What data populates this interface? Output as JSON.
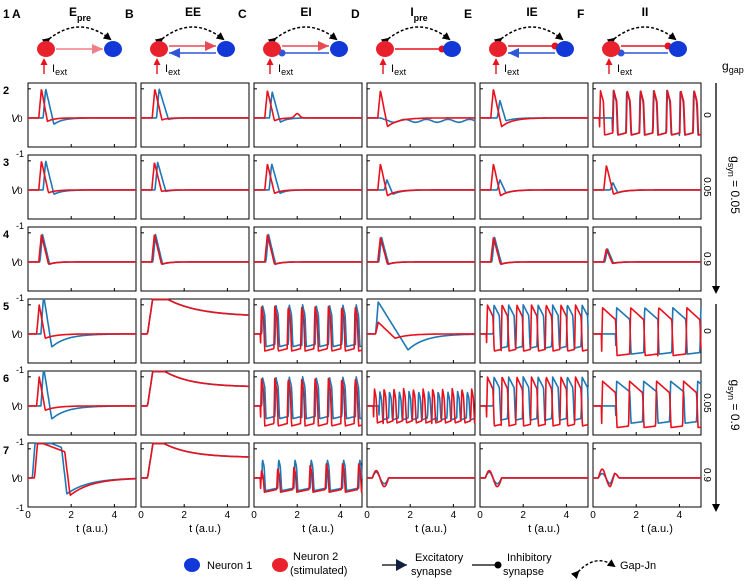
{
  "figure_number": "1",
  "columns": [
    {
      "letter": "A",
      "title": "E",
      "title_sub": "pre",
      "syn": "exc",
      "dir": "pre"
    },
    {
      "letter": "B",
      "title": "EE",
      "title_sub": "",
      "syn": "exc",
      "dir": "both"
    },
    {
      "letter": "C",
      "title": "EI",
      "title_sub": "",
      "syn": "mix1",
      "dir": "both"
    },
    {
      "letter": "D",
      "title": "I",
      "title_sub": "pre",
      "syn": "inh",
      "dir": "pre"
    },
    {
      "letter": "E",
      "title": "IE",
      "title_sub": "",
      "syn": "mix2",
      "dir": "both"
    },
    {
      "letter": "F",
      "title": "II",
      "title_sub": "",
      "syn": "inh",
      "dir": "both"
    }
  ],
  "iext_label": "I",
  "iext_sub": "ext",
  "row_numbers": [
    "2",
    "3",
    "4",
    "5",
    "6",
    "7"
  ],
  "ggap_values": [
    "0",
    "0.05",
    "0.9",
    "0",
    "0.05",
    "0.9"
  ],
  "ggap_label": "g",
  "ggap_sub": "gap",
  "gsyn_labels": [
    {
      "main": "g",
      "sub": "syn",
      "value": " = 0.05"
    },
    {
      "main": "g",
      "sub": "syn",
      "value": " = 0.9"
    }
  ],
  "y_axis_label": "V",
  "y_ticks": [
    "1",
    "0",
    "-1"
  ],
  "x_ticks": [
    "0",
    "2",
    "4"
  ],
  "x_axis_label": "t (a.u.)",
  "legend": {
    "neuron1": "Neuron 1",
    "neuron2_line1": "Neuron 2",
    "neuron2_line2": "(stimulated)",
    "exc_line1": "Excitatory",
    "exc_line2": "synapse",
    "inh_line1": "Inhibitory",
    "inh_line2": "synapse",
    "gap": "Gap-Jn"
  },
  "colors": {
    "neuron1": "#1f77b4",
    "neuron2": "#e8111d",
    "neuron1_dot": "#1238d8",
    "neuron2_dot": "#e8212d"
  },
  "chart_data": {
    "type": "line",
    "grid": false,
    "xlabel": "t (a.u.)",
    "ylabel": "V",
    "xlim": [
      0,
      5
    ],
    "ylim": [
      -1,
      1.2
    ],
    "xticks": [
      0,
      2,
      4
    ],
    "yticks": [
      -1,
      0,
      1
    ],
    "series_names": [
      "Neuron 1",
      "Neuron 2 (stimulated)"
    ],
    "panels": [
      [
        {
          "n1": {
            "k": "s",
            "a": 1.0,
            "d": 0.5,
            "u": 0.22,
            "tau": 0.4,
            "s": 0.7
          },
          "n2": {
            "k": "s",
            "a": 1.0,
            "d": 0.4,
            "u": 0.12,
            "tau": 0.3,
            "s": 0.5
          }
        },
        {
          "n1": {
            "k": "s",
            "a": 1.0,
            "d": 0.55,
            "u": 0.05,
            "tau": 0.3,
            "s": 0.72
          },
          "n2": {
            "k": "s",
            "a": 1.0,
            "d": 0.45,
            "u": 0.07,
            "tau": 0.25,
            "s": 0.52
          }
        },
        {
          "n1": {
            "k": "s",
            "a": 0.9,
            "d": 0.5,
            "u": 0.15,
            "tau": 0.3,
            "s": 0.72
          },
          "n2": {
            "k": "s",
            "a": 0.95,
            "d": 0.45,
            "u": 0.1,
            "tau": 0.25,
            "s": 0.5,
            "bump": 0.15,
            "bt": 2.0
          }
        },
        {
          "n1": {
            "k": "o",
            "base": -0.1,
            "amp": 0.05,
            "period": 1.0,
            "start": 0.5
          },
          "n2": {
            "k": "s",
            "a": 0.95,
            "d": 0.45,
            "u": 0.3,
            "tau": 0.5,
            "s": 0.5
          }
        },
        {
          "n1": {
            "k": "s",
            "a": 0.6,
            "d": 0.4,
            "u": 0.1,
            "tau": 0.4,
            "s": 0.8
          },
          "n2": {
            "k": "s",
            "a": 1.0,
            "d": 0.5,
            "u": 0.3,
            "tau": 0.5,
            "s": 0.5
          }
        },
        {
          "n1": {
            "k": "p",
            "base": -0.6,
            "top": 0.95,
            "period": 0.62,
            "start": 0.9,
            "w": 0.18
          },
          "n2": {
            "k": "p",
            "base": -0.6,
            "top": 0.95,
            "period": 0.62,
            "start": 0.3,
            "w": 0.18
          }
        }
      ],
      [
        {
          "n1": {
            "k": "s",
            "a": 1.0,
            "d": 0.5,
            "u": 0.15,
            "tau": 0.4,
            "s": 0.7
          },
          "n2": {
            "k": "s",
            "a": 1.0,
            "d": 0.45,
            "u": 0.1,
            "tau": 0.35,
            "s": 0.5
          }
        },
        {
          "n1": {
            "k": "s",
            "a": 0.95,
            "d": 0.5,
            "u": 0.05,
            "tau": 0.3,
            "s": 0.65
          },
          "n2": {
            "k": "s",
            "a": 0.95,
            "d": 0.45,
            "u": 0.05,
            "tau": 0.3,
            "s": 0.5
          }
        },
        {
          "n1": {
            "k": "s",
            "a": 0.9,
            "d": 0.5,
            "u": 0.12,
            "tau": 0.3,
            "s": 0.7
          },
          "n2": {
            "k": "s",
            "a": 0.9,
            "d": 0.45,
            "u": 0.12,
            "tau": 0.3,
            "s": 0.5
          }
        },
        {
          "n1": {
            "k": "s",
            "a": 0.35,
            "d": 0.4,
            "u": 0.15,
            "tau": 0.4,
            "s": 0.8
          },
          "n2": {
            "k": "s",
            "a": 0.9,
            "d": 0.45,
            "u": 0.2,
            "tau": 0.4,
            "s": 0.5
          }
        },
        {
          "n1": {
            "k": "s",
            "a": 0.35,
            "d": 0.4,
            "u": 0.1,
            "tau": 0.4,
            "s": 0.8
          },
          "n2": {
            "k": "s",
            "a": 0.9,
            "d": 0.45,
            "u": 0.2,
            "tau": 0.4,
            "s": 0.5
          }
        },
        {
          "n1": {
            "k": "s",
            "a": 0.25,
            "d": 0.35,
            "u": 0.1,
            "tau": 0.4,
            "s": 0.8
          },
          "n2": {
            "k": "s",
            "a": 0.85,
            "d": 0.45,
            "u": 0.15,
            "tau": 0.4,
            "s": 0.5
          }
        }
      ],
      [
        {
          "n1": {
            "k": "s",
            "a": 0.95,
            "d": 0.45,
            "u": 0.08,
            "tau": 0.3,
            "s": 0.55
          },
          "n2": {
            "k": "s",
            "a": 0.95,
            "d": 0.45,
            "u": 0.08,
            "tau": 0.3,
            "s": 0.5
          }
        },
        {
          "n1": {
            "k": "s",
            "a": 0.95,
            "d": 0.45,
            "u": 0.08,
            "tau": 0.3,
            "s": 0.55
          },
          "n2": {
            "k": "s",
            "a": 0.95,
            "d": 0.45,
            "u": 0.08,
            "tau": 0.3,
            "s": 0.5
          }
        },
        {
          "n1": {
            "k": "s",
            "a": 0.95,
            "d": 0.45,
            "u": 0.08,
            "tau": 0.3,
            "s": 0.55
          },
          "n2": {
            "k": "s",
            "a": 0.95,
            "d": 0.45,
            "u": 0.08,
            "tau": 0.3,
            "s": 0.5
          }
        },
        {
          "n1": {
            "k": "s",
            "a": 0.85,
            "d": 0.45,
            "u": 0.08,
            "tau": 0.3,
            "s": 0.55
          },
          "n2": {
            "k": "s",
            "a": 0.85,
            "d": 0.45,
            "u": 0.08,
            "tau": 0.3,
            "s": 0.5
          }
        },
        {
          "n1": {
            "k": "s",
            "a": 0.85,
            "d": 0.45,
            "u": 0.08,
            "tau": 0.3,
            "s": 0.55
          },
          "n2": {
            "k": "s",
            "a": 0.85,
            "d": 0.45,
            "u": 0.08,
            "tau": 0.3,
            "s": 0.5
          }
        },
        {
          "n1": {
            "k": "s",
            "a": 0.45,
            "d": 0.4,
            "u": 0.05,
            "tau": 0.3,
            "s": 0.55
          },
          "n2": {
            "k": "s",
            "a": 0.45,
            "d": 0.4,
            "u": 0.05,
            "tau": 0.3,
            "s": 0.5
          }
        }
      ],
      [
        {
          "n1": {
            "k": "s",
            "a": 1.35,
            "d": 0.5,
            "u": 0.45,
            "tau": 0.7,
            "s": 0.6
          },
          "n2": {
            "k": "s",
            "a": 1.0,
            "d": 0.4,
            "u": 0.15,
            "tau": 0.5,
            "s": 0.4
          }
        },
        {
          "n1": {
            "k": "a",
            "a": 1.5,
            "tau": 12.0,
            "fin": 0.6,
            "s": 0.3
          },
          "n2": {
            "k": "a",
            "a": 1.5,
            "tau": 12.0,
            "fin": 0.6,
            "s": 0.3
          }
        },
        {
          "n1": {
            "k": "p",
            "base": -0.45,
            "top": 1.0,
            "period": 0.62,
            "start": 0.35,
            "w": 0.15
          },
          "n2": {
            "k": "p",
            "base": -0.6,
            "top": 0.95,
            "period": 0.62,
            "start": 0.3,
            "w": 0.14
          }
        },
        {
          "n1": {
            "k": "s",
            "a": 1.1,
            "d": 1.5,
            "u": 0.55,
            "tau": 0.8,
            "s": 0.4
          },
          "n2": {
            "k": "s",
            "a": 0.4,
            "d": 0.9,
            "u": 0.15,
            "tau": 0.6,
            "s": 0.4
          }
        },
        {
          "n1": {
            "k": "p",
            "base": -0.5,
            "top": 1.0,
            "period": 0.68,
            "start": 0.6,
            "w": 0.3
          },
          "n2": {
            "k": "p",
            "base": -0.6,
            "top": 1.0,
            "period": 0.68,
            "start": 0.3,
            "w": 0.3
          }
        },
        {
          "n1": {
            "k": "p",
            "base": -0.7,
            "top": 0.9,
            "period": 1.3,
            "start": 1.05,
            "w": 0.65
          },
          "n2": {
            "k": "p",
            "base": -0.75,
            "top": 0.9,
            "period": 1.3,
            "start": 0.4,
            "w": 0.65
          }
        }
      ],
      [
        {
          "n1": {
            "k": "s",
            "a": 1.35,
            "d": 0.5,
            "u": 0.45,
            "tau": 0.7,
            "s": 0.6
          },
          "n2": {
            "k": "s",
            "a": 1.0,
            "d": 0.4,
            "u": 0.15,
            "tau": 0.5,
            "s": 0.4
          }
        },
        {
          "n1": {
            "k": "a",
            "a": 1.45,
            "tau": 10.0,
            "fin": 0.65,
            "s": 0.3
          },
          "n2": {
            "k": "a",
            "a": 1.45,
            "tau": 10.0,
            "fin": 0.65,
            "s": 0.3
          }
        },
        {
          "n1": {
            "k": "p",
            "base": -0.45,
            "top": 1.0,
            "period": 0.62,
            "start": 0.35,
            "w": 0.15
          },
          "n2": {
            "k": "p",
            "base": -0.7,
            "top": 0.95,
            "period": 0.62,
            "start": 0.3,
            "w": 0.14
          }
        },
        {
          "n1": {
            "k": "p",
            "base": -0.5,
            "top": 0.5,
            "period": 0.45,
            "start": 0.55,
            "w": 0.12
          },
          "n2": {
            "k": "p",
            "base": -0.6,
            "top": 0.6,
            "period": 0.45,
            "start": 0.3,
            "w": 0.12
          }
        },
        {
          "n1": {
            "k": "p",
            "base": -0.5,
            "top": 1.0,
            "period": 0.68,
            "start": 0.6,
            "w": 0.3
          },
          "n2": {
            "k": "p",
            "base": -0.7,
            "top": 1.0,
            "period": 0.68,
            "start": 0.3,
            "w": 0.3
          }
        },
        {
          "n1": {
            "k": "p",
            "base": -0.6,
            "top": 0.85,
            "period": 1.25,
            "start": 1.05,
            "w": 0.65
          },
          "n2": {
            "k": "p",
            "base": -0.75,
            "top": 0.85,
            "period": 1.25,
            "start": 0.4,
            "w": 0.65
          }
        }
      ],
      [
        {
          "n1": {
            "k": "pl",
            "a": 1.4,
            "fall": 1.55,
            "u": 0.55,
            "tau": 1.0,
            "s": 0.2
          },
          "n2": {
            "k": "pl",
            "a": 1.25,
            "fall": 1.7,
            "u": 0.6,
            "tau": 1.0,
            "s": 0.3
          }
        },
        {
          "n1": {
            "k": "a",
            "a": 1.4,
            "tau": 10.0,
            "fin": 0.7,
            "s": 0.3
          },
          "n2": {
            "k": "a",
            "a": 1.4,
            "tau": 10.0,
            "fin": 0.7,
            "s": 0.3
          }
        },
        {
          "n1": {
            "k": "p",
            "base": -0.45,
            "top": 0.65,
            "period": 0.75,
            "start": 0.35,
            "w": 0.12
          },
          "n2": {
            "k": "p",
            "base": -0.5,
            "top": 0.5,
            "period": 0.75,
            "start": 0.3,
            "w": 0.12,
            "ramp": 1
          }
        },
        {
          "n1": {
            "k": "f",
            "a": 0.2,
            "d": 0.2
          },
          "n2": {
            "k": "f",
            "a": 0.25,
            "d": 0.3
          }
        },
        {
          "n1": {
            "k": "f",
            "a": 0.2,
            "d": 0.2
          },
          "n2": {
            "k": "f",
            "a": 0.25,
            "d": 0.3
          }
        },
        {
          "n1": {
            "k": "f",
            "a": 0.15,
            "d": 0.2,
            "sec": 0.8
          },
          "n2": {
            "k": "f",
            "a": 0.3,
            "d": 0.3,
            "sec": 0.8
          }
        }
      ]
    ]
  }
}
